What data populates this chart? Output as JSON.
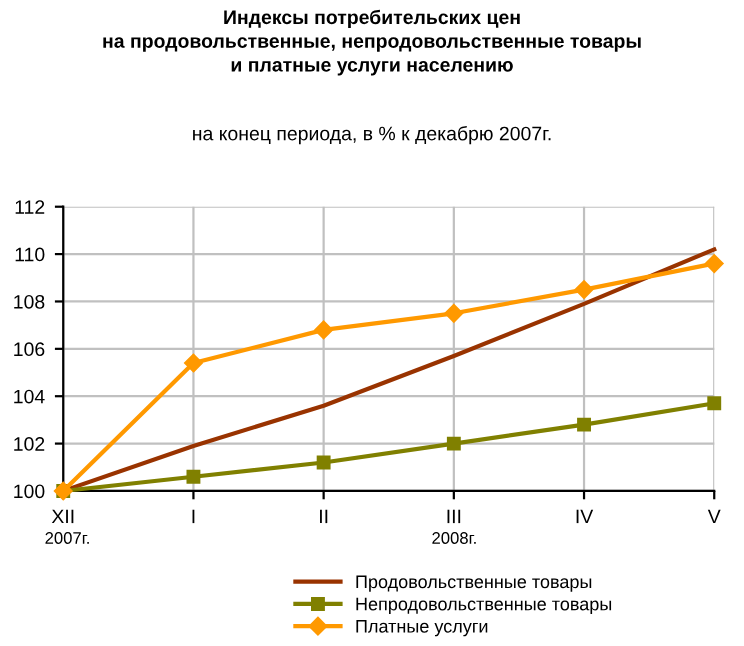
{
  "chart_data": {
    "type": "line",
    "title": "Индексы потребительских цен\nна продовольственные, непродовольственные товары\nи платные услуги населению",
    "subtitle": "на конец периода, в % к декабрю 2007г.",
    "categories": [
      "XII",
      "I",
      "II",
      "III",
      "IV",
      "V"
    ],
    "series": [
      {
        "name": "Продовольственные товары",
        "color": "#993300",
        "marker": "none",
        "values": [
          100,
          101.9,
          103.6,
          105.7,
          107.9,
          110.2
        ]
      },
      {
        "name": "Непродовольственные товары",
        "color": "#808000",
        "marker": "square",
        "values": [
          100,
          100.6,
          101.2,
          102.0,
          102.8,
          103.7
        ]
      },
      {
        "name": "Платные услуги",
        "color": "#ff9900",
        "marker": "diamond",
        "values": [
          100,
          105.4,
          106.8,
          107.5,
          108.5,
          109.6
        ]
      }
    ],
    "ylim": [
      100,
      112
    ],
    "yticks": [
      100,
      102,
      104,
      106,
      108,
      110,
      112
    ],
    "grid": true,
    "legend": "bottom",
    "annotations": [
      "2007г.",
      "2008г."
    ]
  }
}
